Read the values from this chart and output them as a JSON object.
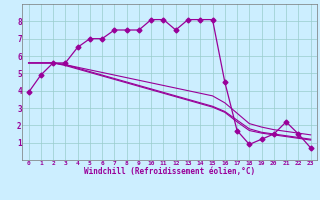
{
  "xlabel": "Windchill (Refroidissement éolien,°C)",
  "bg_color": "#cceeff",
  "line_color": "#990099",
  "xlim": [
    -0.5,
    23.5
  ],
  "ylim": [
    0,
    9
  ],
  "xticks": [
    0,
    1,
    2,
    3,
    4,
    5,
    6,
    7,
    8,
    9,
    10,
    11,
    12,
    13,
    14,
    15,
    16,
    17,
    18,
    19,
    20,
    21,
    22,
    23
  ],
  "yticks": [
    1,
    2,
    3,
    4,
    5,
    6,
    7,
    8
  ],
  "curve1_x": [
    0,
    1,
    2,
    3,
    4,
    5,
    6,
    7,
    8,
    9,
    10,
    11,
    12,
    13,
    14,
    15,
    16,
    17,
    18,
    19,
    20,
    21,
    22,
    23
  ],
  "curve1_y": [
    3.9,
    4.9,
    5.6,
    5.6,
    6.5,
    7.0,
    7.0,
    7.5,
    7.5,
    7.5,
    8.1,
    8.1,
    7.5,
    8.1,
    8.1,
    8.1,
    4.5,
    1.7,
    0.9,
    1.2,
    1.5,
    2.2,
    1.5,
    0.7
  ],
  "curve2_x": [
    0,
    1,
    2,
    3,
    4,
    5,
    6,
    7,
    8,
    9,
    10,
    11,
    12,
    13,
    14,
    15,
    16,
    17,
    18,
    19,
    20,
    21,
    22,
    23
  ],
  "curve2_y": [
    5.6,
    5.6,
    5.6,
    5.5,
    5.35,
    5.2,
    5.05,
    4.9,
    4.75,
    4.6,
    4.45,
    4.3,
    4.15,
    4.0,
    3.85,
    3.7,
    3.3,
    2.7,
    2.1,
    1.9,
    1.75,
    1.65,
    1.55,
    1.45
  ],
  "curve3_x": [
    0,
    1,
    2,
    3,
    4,
    5,
    6,
    7,
    8,
    9,
    10,
    11,
    12,
    13,
    14,
    15,
    16,
    17,
    18,
    19,
    20,
    21,
    22,
    23
  ],
  "curve3_y": [
    5.6,
    5.6,
    5.6,
    5.5,
    5.3,
    5.1,
    4.9,
    4.7,
    4.5,
    4.3,
    4.1,
    3.9,
    3.7,
    3.5,
    3.3,
    3.1,
    2.8,
    2.3,
    1.8,
    1.6,
    1.5,
    1.4,
    1.3,
    1.2
  ],
  "curve4_x": [
    0,
    1,
    2,
    3,
    4,
    5,
    6,
    7,
    8,
    9,
    10,
    11,
    12,
    13,
    14,
    15,
    16,
    17,
    18,
    19,
    20,
    21,
    22,
    23
  ],
  "curve4_y": [
    5.6,
    5.6,
    5.6,
    5.45,
    5.25,
    5.05,
    4.85,
    4.65,
    4.45,
    4.25,
    4.05,
    3.85,
    3.65,
    3.45,
    3.25,
    3.05,
    2.75,
    2.2,
    1.7,
    1.55,
    1.45,
    1.35,
    1.25,
    1.15
  ]
}
